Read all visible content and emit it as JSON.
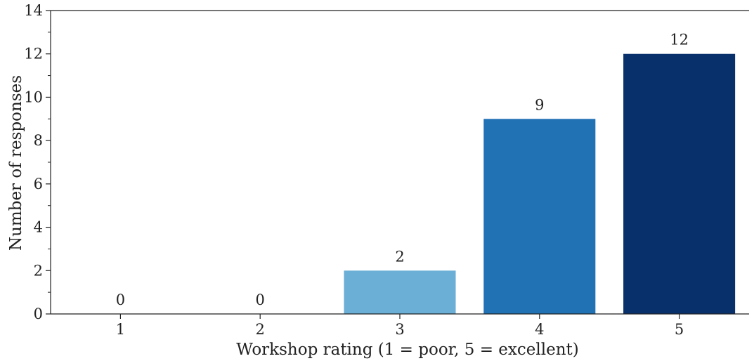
{
  "chart_data": {
    "type": "bar",
    "categories": [
      "1",
      "2",
      "3",
      "4",
      "5"
    ],
    "values": [
      0,
      0,
      2,
      9,
      12
    ],
    "data_labels": [
      "0",
      "0",
      "2",
      "9",
      "12"
    ],
    "bar_colors": [
      "#c6dbef",
      "#9ecae1",
      "#6baed6",
      "#2171b5",
      "#08306b"
    ],
    "xlabel": "Workshop rating (1 = poor, 5 = excellent)",
    "ylabel": "Number of responses",
    "ylim": [
      0,
      14
    ],
    "yticks": [
      0,
      2,
      4,
      6,
      8,
      10,
      12,
      14
    ],
    "yticks_minor": [
      1,
      3,
      5,
      7,
      9,
      11,
      13
    ],
    "grid": false,
    "spines": [
      "left",
      "bottom",
      "top"
    ]
  }
}
